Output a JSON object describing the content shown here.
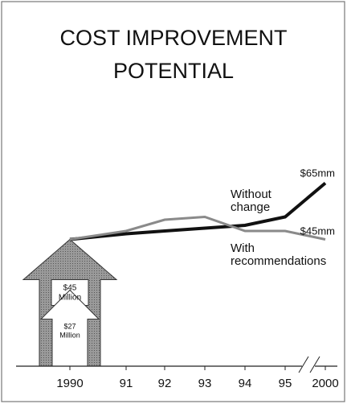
{
  "chart_data": {
    "type": "line",
    "title": [
      "COST IMPROVEMENT",
      "POTENTIAL"
    ],
    "categories": [
      "1990",
      "91",
      "92",
      "93",
      "94",
      "95",
      "2000"
    ],
    "series": [
      {
        "name": "Without change",
        "color": "#111111",
        "values": [
          45,
          47,
          48,
          49,
          50,
          53,
          65
        ],
        "value_labels": [
          null,
          null,
          null,
          null,
          null,
          null,
          "$65mm"
        ]
      },
      {
        "name": "With recommendations",
        "color": "#8a8a8a",
        "values": [
          45,
          48,
          52,
          53,
          48,
          48,
          45
        ],
        "value_labels": [
          null,
          null,
          null,
          null,
          null,
          null,
          "$45mm"
        ]
      }
    ],
    "arrows": {
      "values": [
        45,
        27
      ],
      "value_labels": [
        "$45 Million",
        "$27 Million"
      ]
    },
    "ylim": [
      0,
      70
    ],
    "axis_break": true
  }
}
